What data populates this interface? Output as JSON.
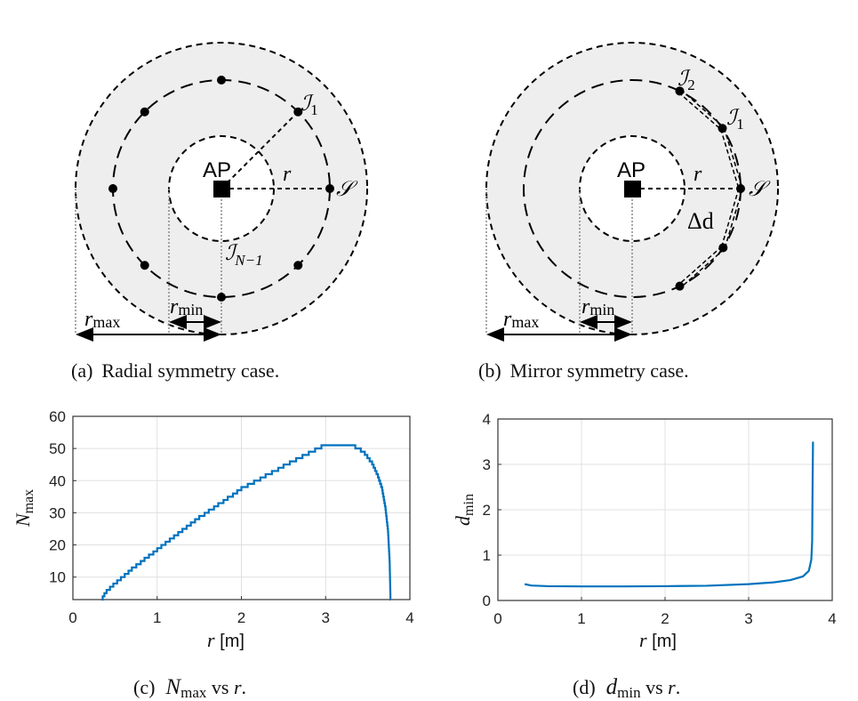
{
  "panels": {
    "a": {
      "caption_tag": "(a)",
      "caption_text": "Radial symmetry case.",
      "labels": {
        "ap": "AP",
        "r": "r",
        "s": "𝒮",
        "i1_main": "ℐ",
        "i1_sub": "1",
        "in1_main": "ℐ",
        "in1_sub": "N−1",
        "rmax_main": "r",
        "rmax_sub": "max",
        "rmin_main": "r",
        "rmin_sub": "min"
      }
    },
    "b": {
      "caption_tag": "(b)",
      "caption_text": "Mirror symmetry case.",
      "labels": {
        "ap": "AP",
        "r": "r",
        "s": "𝒮",
        "i1_main": "ℐ",
        "i1_sub": "1",
        "i2_main": "ℐ",
        "i2_sub": "2",
        "dd": "Δd",
        "rmax_main": "r",
        "rmax_sub": "max",
        "rmin_main": "r",
        "rmin_sub": "min"
      }
    },
    "c": {
      "caption_tag": "(c)",
      "caption_main": "N",
      "caption_sub": "max",
      "caption_tail": " vs ",
      "caption_var": "r",
      "caption_end": "."
    },
    "d": {
      "caption_tag": "(d)",
      "caption_main": "d",
      "caption_sub": "min",
      "caption_tail": " vs ",
      "caption_var": "r",
      "caption_end": "."
    }
  },
  "colors": {
    "line": "#0072BD",
    "annulus": "#eeeeee"
  },
  "chart_data": [
    {
      "type": "line",
      "step": true,
      "xlabel_var": "r",
      "xlabel_unit": " [m]",
      "ylabel_main": "N",
      "ylabel_sub": "max",
      "xlim": [
        0,
        4
      ],
      "ylim": [
        3,
        60
      ],
      "xticks": [
        0,
        1,
        2,
        3,
        4
      ],
      "yticks": [
        10,
        20,
        30,
        40,
        50,
        60
      ],
      "grid": true,
      "points": [
        [
          0.34,
          3
        ],
        [
          0.36,
          4.5
        ],
        [
          0.4,
          6
        ],
        [
          0.5,
          8.5
        ],
        [
          0.7,
          13
        ],
        [
          1.0,
          19
        ],
        [
          1.5,
          29
        ],
        [
          2.0,
          38
        ],
        [
          2.5,
          45
        ],
        [
          2.8,
          49
        ],
        [
          2.95,
          51
        ],
        [
          3.35,
          51
        ],
        [
          3.45,
          49.5
        ],
        [
          3.55,
          46
        ],
        [
          3.62,
          42
        ],
        [
          3.67,
          38
        ],
        [
          3.71,
          32
        ],
        [
          3.74,
          25
        ],
        [
          3.76,
          15
        ],
        [
          3.77,
          3
        ]
      ]
    },
    {
      "type": "line",
      "step": false,
      "xlabel_var": "r",
      "xlabel_unit": " [m]",
      "ylabel_main": "d",
      "ylabel_sub": "min",
      "xlim": [
        0,
        4
      ],
      "ylim": [
        0,
        4
      ],
      "xticks": [
        0,
        1,
        2,
        3,
        4
      ],
      "yticks": [
        0,
        1,
        2,
        3,
        4
      ],
      "grid": true,
      "points": [
        [
          0.32,
          0.36
        ],
        [
          0.4,
          0.33
        ],
        [
          0.6,
          0.315
        ],
        [
          1,
          0.31
        ],
        [
          1.5,
          0.31
        ],
        [
          2,
          0.315
        ],
        [
          2.5,
          0.325
        ],
        [
          3,
          0.36
        ],
        [
          3.3,
          0.4
        ],
        [
          3.5,
          0.45
        ],
        [
          3.65,
          0.53
        ],
        [
          3.72,
          0.65
        ],
        [
          3.75,
          0.9
        ],
        [
          3.76,
          1.3
        ],
        [
          3.765,
          2.5
        ],
        [
          3.77,
          3.5
        ]
      ]
    }
  ]
}
